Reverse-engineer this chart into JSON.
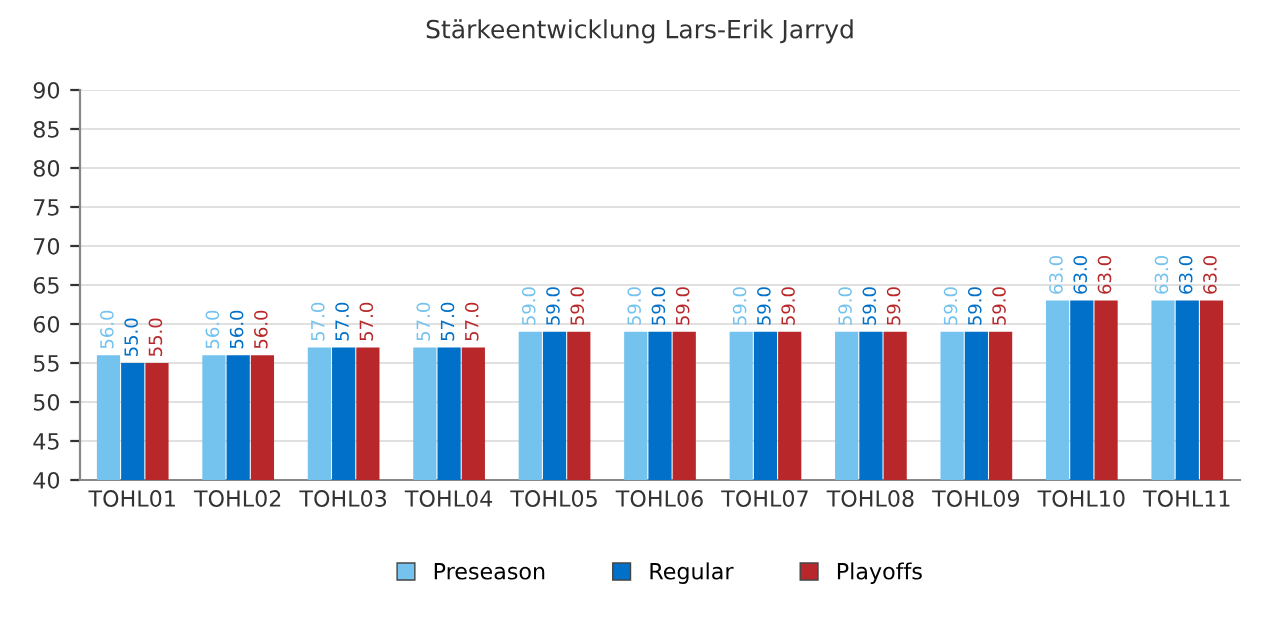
{
  "chart_data": {
    "type": "bar",
    "title": "Stärkeentwicklung Lars-Erik Jarryd",
    "categories": [
      "TOHL01",
      "TOHL02",
      "TOHL03",
      "TOHL04",
      "TOHL05",
      "TOHL06",
      "TOHL07",
      "TOHL08",
      "TOHL09",
      "TOHL10",
      "TOHL11"
    ],
    "series": [
      {
        "name": "Preseason",
        "color": "#74c2ee",
        "values": [
          56,
          56,
          57,
          57,
          59,
          59,
          59,
          59,
          59,
          63,
          63
        ],
        "value_labels": [
          "56.0",
          "56.0",
          "57.0",
          "57.0",
          "59.0",
          "59.0",
          "59.0",
          "59.0",
          "59.0",
          "63.0",
          "63.0"
        ]
      },
      {
        "name": "Regular",
        "color": "#0070c8",
        "values": [
          55,
          56,
          57,
          57,
          59,
          59,
          59,
          59,
          59,
          63,
          63
        ],
        "value_labels": [
          "55.0",
          "56.0",
          "57.0",
          "57.0",
          "59.0",
          "59.0",
          "59.0",
          "59.0",
          "59.0",
          "63.0",
          "63.0"
        ]
      },
      {
        "name": "Playoffs",
        "color": "#b8282a",
        "values": [
          55,
          56,
          57,
          57,
          59,
          59,
          59,
          59,
          59,
          63,
          63
        ],
        "value_labels": [
          "55.0",
          "56.0",
          "57.0",
          "57.0",
          "59.0",
          "59.0",
          "59.0",
          "59.0",
          "59.0",
          "63.0",
          "63.0"
        ]
      }
    ],
    "ylim": [
      40,
      90
    ],
    "yticks": [
      40,
      45,
      50,
      55,
      60,
      65,
      70,
      75,
      80,
      85,
      90
    ],
    "grid": "y",
    "legend": "bottom"
  }
}
